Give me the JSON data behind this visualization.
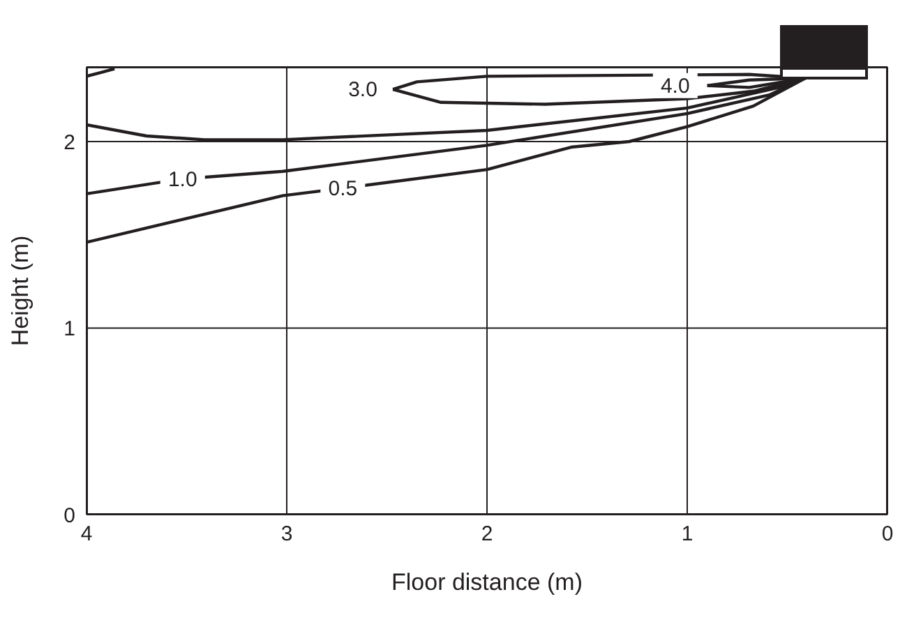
{
  "chart_data": {
    "type": "line",
    "xlabel": "Floor distance (m)",
    "ylabel": "Height (m)",
    "xlim": [
      4,
      0
    ],
    "ylim": [
      0,
      2.4
    ],
    "xticks": [
      4,
      3,
      2,
      1,
      0
    ],
    "yticks": [
      0,
      1,
      2
    ],
    "grid": true,
    "marker": "none",
    "line_style": "solid",
    "series": [
      {
        "color": "#231f20",
        "x": [
          4.0,
          3.02,
          2.72,
          2.0,
          1.58,
          1.29,
          1.0,
          0.67,
          0.41
        ],
        "values": [
          1.46,
          1.71,
          1.75,
          1.85,
          1.97,
          2.0,
          2.08,
          2.19,
          2.34
        ]
      },
      {
        "color": "#231f20",
        "x": [
          4.0,
          3.52,
          3.02,
          2.0,
          1.0,
          0.59,
          0.41
        ],
        "values": [
          1.72,
          1.8,
          1.84,
          1.98,
          2.15,
          2.25,
          2.34
        ]
      },
      {
        "color": "#231f20",
        "x": [
          4.0,
          3.7,
          3.41,
          3.02,
          2.0,
          1.0,
          0.54,
          0.41
        ],
        "values": [
          2.09,
          2.03,
          2.01,
          2.01,
          2.06,
          2.18,
          2.29,
          2.34
        ]
      },
      {
        "color": "#231f20",
        "x": [
          0.41,
          0.69,
          2.0,
          2.35,
          2.47
        ],
        "values": [
          2.34,
          2.36,
          2.35,
          2.32,
          2.28
        ]
      },
      {
        "color": "#231f20",
        "x": [
          2.47,
          2.23,
          1.71,
          1.0,
          0.67,
          0.41
        ],
        "values": [
          2.28,
          2.21,
          2.2,
          2.23,
          2.27,
          2.34
        ]
      },
      {
        "color": "#231f20",
        "x": [
          0.41,
          0.69,
          0.9
        ],
        "values": [
          2.34,
          2.33,
          2.3
        ]
      },
      {
        "color": "#231f20",
        "x": [
          0.9,
          0.69,
          0.41
        ],
        "values": [
          2.3,
          2.29,
          2.34
        ]
      },
      {
        "color": "#231f20",
        "x": [
          4.0,
          3.93,
          3.86
        ],
        "values": [
          2.35,
          2.37,
          2.39
        ]
      }
    ],
    "annotations": [
      {
        "text": "0.5",
        "x": 2.72,
        "y": 1.75
      },
      {
        "text": "1.0",
        "x": 3.52,
        "y": 1.8
      },
      {
        "text": "3.0",
        "x": 2.62,
        "y": 2.28
      },
      {
        "text": "4.0",
        "x": 1.06,
        "y": 2.3
      }
    ]
  }
}
